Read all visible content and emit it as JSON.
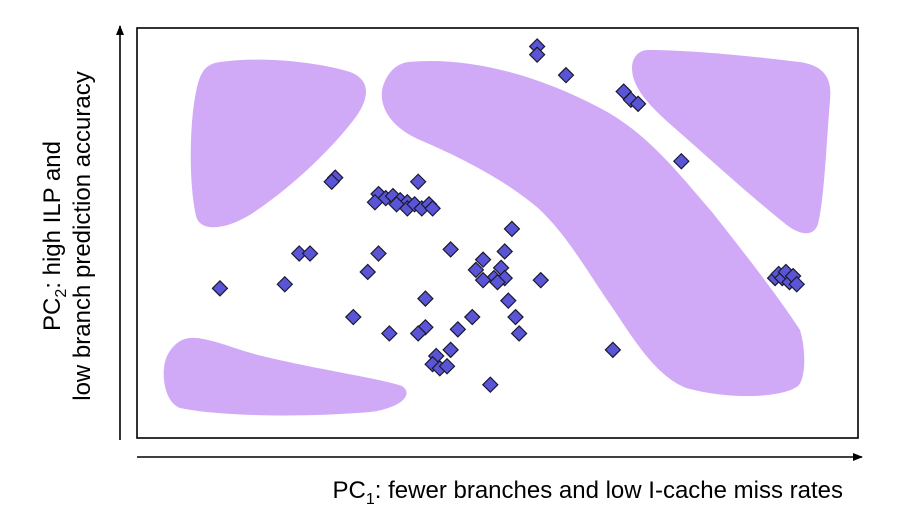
{
  "colors": {
    "region_fill": "#d1aaf7",
    "marker_fill": "#5a55d6",
    "marker_stroke": "#1a1a2e",
    "frame": "#000000"
  },
  "chart_data": {
    "type": "scatter",
    "title": "",
    "xlabel_prefix": "PC",
    "xlabel_sub": "1",
    "xlabel_rest": ": fewer branches and low I-cache miss rates",
    "ylabel_line1_prefix": "PC",
    "ylabel_line1_sub": "2",
    "ylabel_line1_rest": ": high ILP and",
    "ylabel_line2": "low branch prediction accuracy",
    "xlim": [
      0,
      100
    ],
    "ylim": [
      0,
      100
    ],
    "ticks": "none",
    "grid": false,
    "marker": "diamond",
    "points": [
      [
        55.5,
        95.5
      ],
      [
        55.5,
        93.5
      ],
      [
        59.5,
        88.5
      ],
      [
        67.5,
        84.5
      ],
      [
        68.5,
        82.5
      ],
      [
        69.5,
        81.5
      ],
      [
        75.5,
        67.5
      ],
      [
        27.5,
        63.5
      ],
      [
        27.0,
        62.5
      ],
      [
        39.0,
        62.5
      ],
      [
        33.5,
        59.5
      ],
      [
        34.5,
        58.5
      ],
      [
        35.5,
        59.0
      ],
      [
        36.5,
        58.0
      ],
      [
        37.5,
        57.5
      ],
      [
        36.0,
        57.0
      ],
      [
        37.5,
        56.0
      ],
      [
        38.5,
        57.0
      ],
      [
        39.5,
        56.0
      ],
      [
        40.5,
        57.0
      ],
      [
        41.0,
        56.0
      ],
      [
        33.0,
        57.5
      ],
      [
        52.0,
        51.0
      ],
      [
        43.5,
        46.0
      ],
      [
        51.0,
        45.5
      ],
      [
        33.5,
        45.0
      ],
      [
        22.5,
        45.0
      ],
      [
        24.0,
        45.0
      ],
      [
        48.0,
        43.5
      ],
      [
        47.0,
        41.0
      ],
      [
        50.5,
        41.5
      ],
      [
        49.5,
        39.0
      ],
      [
        51.0,
        39.0
      ],
      [
        32.0,
        40.5
      ],
      [
        48.0,
        38.5
      ],
      [
        50.0,
        38.0
      ],
      [
        56.0,
        38.5
      ],
      [
        11.5,
        36.5
      ],
      [
        20.5,
        37.5
      ],
      [
        40.0,
        34.0
      ],
      [
        51.5,
        33.5
      ],
      [
        30.0,
        29.5
      ],
      [
        46.5,
        29.5
      ],
      [
        52.5,
        29.5
      ],
      [
        40.0,
        27.0
      ],
      [
        35.0,
        25.5
      ],
      [
        39.0,
        25.5
      ],
      [
        44.5,
        26.5
      ],
      [
        53.0,
        25.5
      ],
      [
        43.5,
        21.5
      ],
      [
        41.5,
        20.0
      ],
      [
        41.0,
        18.0
      ],
      [
        42.0,
        17.0
      ],
      [
        43.0,
        17.5
      ],
      [
        66.0,
        21.5
      ],
      [
        49.0,
        13.0
      ],
      [
        88.5,
        39.0
      ],
      [
        89.0,
        40.0
      ],
      [
        89.5,
        39.0
      ],
      [
        90.0,
        40.5
      ],
      [
        90.5,
        38.0
      ],
      [
        91.0,
        39.5
      ],
      [
        91.5,
        37.5
      ]
    ]
  }
}
